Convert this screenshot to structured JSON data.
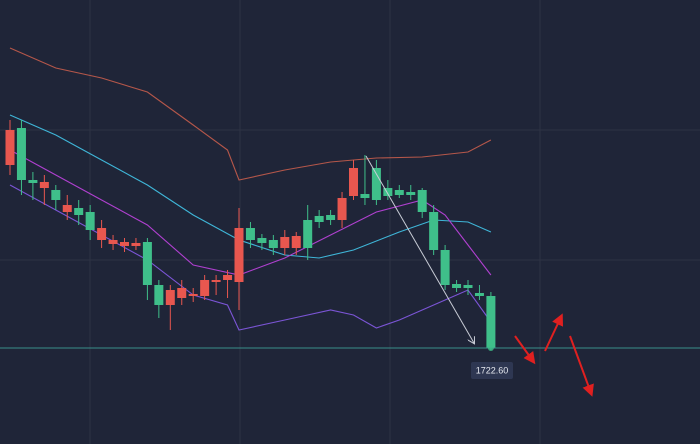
{
  "chart_data": {
    "type": "candlestick",
    "categories": [
      null,
      null,
      null,
      null,
      null,
      null,
      null,
      null,
      null,
      null,
      null,
      null,
      null,
      null,
      null,
      null,
      null,
      null,
      null,
      null,
      null,
      null,
      null,
      null,
      null,
      null,
      null,
      null,
      null,
      null,
      null,
      null,
      null,
      null,
      null,
      null,
      null,
      null,
      null,
      null,
      null,
      null,
      null
    ],
    "open": [
      1768.35,
      1777.6,
      1764.6,
      1762.6,
      1762.1,
      1756.6,
      1757.6,
      1756.6,
      1749.6,
      1748.6,
      1748.1,
      1748.1,
      1749.1,
      1738.35,
      1733.35,
      1735.1,
      1735.6,
      1735.6,
      1739.1,
      1739.6,
      1739.1,
      1752.6,
      1750.1,
      1749.6,
      1747.6,
      1747.6,
      1754.6,
      1755.6,
      1755.85,
      1754.6,
      1760.6,
      1761.1,
      1767.6,
      1762.6,
      1762.1,
      1761.6,
      1762.1,
      1756.6,
      1747.1,
      1738.6,
      1738.35,
      1736.35,
      1735.6
    ],
    "high": [
      1779.6,
      1779.6,
      1766.6,
      1765.85,
      1763.35,
      1760.85,
      1759.6,
      1758.35,
      1754.6,
      1750.85,
      1750.1,
      1750.1,
      1750.1,
      1739.6,
      1738.35,
      1739.6,
      1737.6,
      1740.85,
      1740.85,
      1742.1,
      1757.6,
      1754.1,
      1751.1,
      1750.85,
      1752.1,
      1751.6,
      1758.35,
      1757.1,
      1757.1,
      1761.6,
      1769.6,
      1770.85,
      1769.6,
      1764.6,
      1763.35,
      1763.35,
      1762.6,
      1758.35,
      1748.35,
      1739.6,
      1739.6,
      1738.35,
      1736.6
    ],
    "low": [
      1765.85,
      1760.85,
      1759.6,
      1758.35,
      1757.1,
      1754.6,
      1753.35,
      1749.6,
      1747.6,
      1747.1,
      1746.6,
      1747.1,
      1734.6,
      1730.1,
      1727.1,
      1733.35,
      1734.1,
      1734.6,
      1735.85,
      1735.1,
      1732.1,
      1747.6,
      1747.1,
      1745.85,
      1745.85,
      1745.85,
      1744.6,
      1752.6,
      1753.35,
      1752.6,
      1759.6,
      1758.35,
      1758.35,
      1759.6,
      1760.1,
      1759.6,
      1755.1,
      1745.85,
      1737.1,
      1736.6,
      1735.85,
      1734.6,
      1722.1
    ],
    "close": [
      1777.1,
      1764.6,
      1763.85,
      1764.1,
      1759.6,
      1758.35,
      1755.85,
      1752.1,
      1752.6,
      1749.6,
      1749.1,
      1748.85,
      1738.35,
      1733.35,
      1737.1,
      1737.6,
      1736.1,
      1739.6,
      1739.6,
      1740.85,
      1752.6,
      1749.6,
      1748.85,
      1747.6,
      1750.35,
      1750.6,
      1747.6,
      1754.1,
      1754.6,
      1760.1,
      1767.6,
      1760.1,
      1759.6,
      1760.6,
      1760.85,
      1760.85,
      1756.6,
      1747.1,
      1738.35,
      1737.6,
      1737.6,
      1735.6,
      1722.6
    ],
    "up_color": "#e8574f",
    "down_color": "#3fbf8a",
    "lines": [
      {
        "color": "#b5574a",
        "x": [
          0,
          4,
          8,
          12,
          16,
          19,
          20,
          24,
          28,
          32,
          36,
          40,
          42
        ],
        "values": [
          1797.6,
          1792.6,
          1790.1,
          1786.6,
          1778.35,
          1772.1,
          1764.6,
          1767.1,
          1769.1,
          1770.1,
          1770.35,
          1771.6,
          1774.6
        ]
      },
      {
        "color": "#3fb6d8",
        "x": [
          0,
          4,
          8,
          12,
          16,
          20,
          24,
          27,
          30,
          34,
          37,
          40,
          42
        ],
        "values": [
          1780.85,
          1775.85,
          1769.6,
          1763.35,
          1755.85,
          1749.6,
          1745.85,
          1745.1,
          1747.1,
          1751.6,
          1754.6,
          1754.1,
          1751.6
        ]
      },
      {
        "color": "#b040d0",
        "x": [
          0,
          4,
          8,
          12,
          16,
          20,
          24,
          28,
          32,
          36,
          38,
          40,
          42
        ],
        "values": [
          1772.1,
          1765.85,
          1759.6,
          1753.35,
          1743.35,
          1740.85,
          1745.1,
          1750.85,
          1756.6,
          1759.6,
          1755.85,
          1748.35,
          1740.85
        ]
      },
      {
        "color": "#7b55d6",
        "x": [
          0,
          4,
          8,
          12,
          16,
          19,
          20,
          24,
          28,
          30,
          32,
          34,
          38,
          40,
          42
        ],
        "values": [
          1763.35,
          1757.1,
          1750.85,
          1744.6,
          1735.85,
          1733.35,
          1727.1,
          1729.6,
          1732.1,
          1730.85,
          1727.6,
          1729.6,
          1734.6,
          1737.1,
          1729.1
        ]
      }
    ],
    "last_price": {
      "value": 1722.6,
      "label": "1722.60"
    },
    "last_price_color": "#3a8f8a",
    "ylim": [
      1698.6,
      1809.6
    ]
  }
}
